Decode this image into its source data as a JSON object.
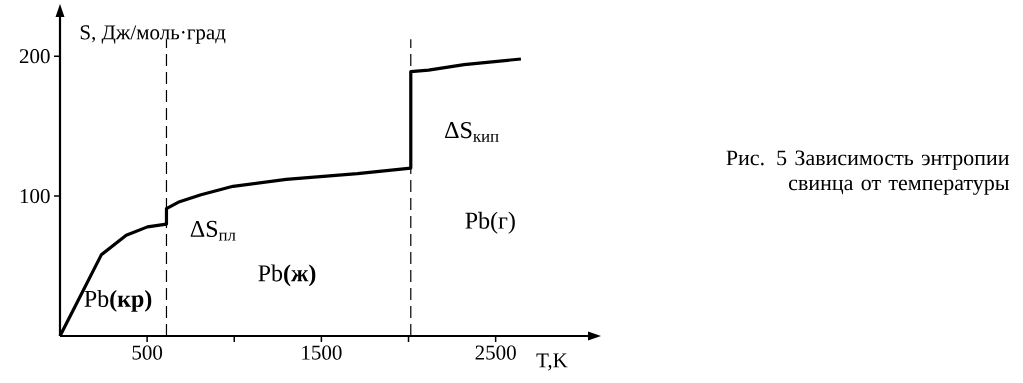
{
  "chart_data": {
    "type": "line",
    "title": "Рис. 5 Зависимость энтропии свинца от температуры",
    "xlabel": "T,K",
    "ylabel": "S, Дж/моль·град",
    "x": [
      0,
      74,
      237,
      380,
      502,
      611,
      611,
      686,
      809,
      993,
      1298,
      1707,
      2013,
      2013,
      2115,
      2319,
      2645
    ],
    "series": [
      {
        "color": "#000000",
        "values": [
          0,
          18,
          58,
          72,
          78,
          80,
          91,
          96,
          101,
          107,
          112,
          116,
          120,
          189,
          190,
          194,
          198
        ]
      }
    ],
    "xlim": [
      0,
      3030
    ],
    "ylim": [
      0,
      228
    ],
    "xticks": [
      500,
      {
        "value": 1000,
        "label": null
      },
      1500,
      {
        "value": 2000,
        "label": null
      },
      2500
    ],
    "yticks": [
      100,
      200
    ],
    "ref_lines": [
      {
        "axis": "x",
        "value": 611,
        "line_style": "dashed"
      },
      {
        "axis": "x",
        "value": 2013,
        "line_style": "dashed"
      }
    ],
    "annotations": [
      "ΔS$_{пл}$",
      "ΔS$_{кип}$",
      "Pb**(кр)**",
      "Pb**(ж)**",
      "Pb(г)"
    ],
    "grid": false,
    "marker": "none",
    "line_style": "solid"
  }
}
